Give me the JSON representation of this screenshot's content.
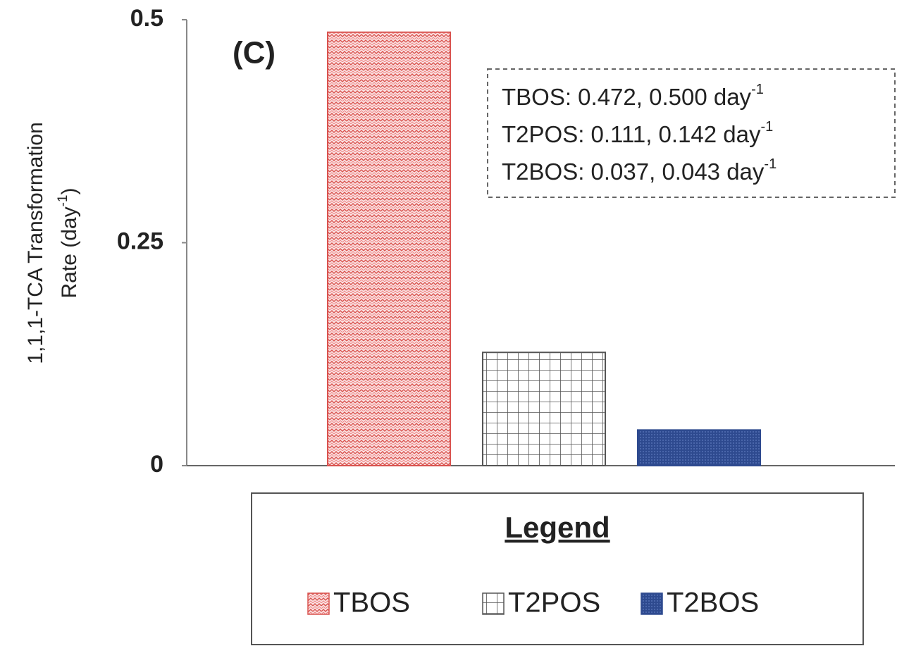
{
  "chart_data": {
    "type": "bar",
    "panel_label": "(C)",
    "y_label": {
      "line1": "1,1,1-TCA Transformation",
      "line2": {
        "before": "Rate (day",
        "sup": "-1",
        "after": ")"
      }
    },
    "categories": [
      "TBOS",
      "T2POS",
      "T2BOS"
    ],
    "values": [
      0.486,
      0.127,
      0.04
    ],
    "colors": [
      "#d9534f",
      "#555555",
      "#2e4a8f"
    ],
    "patterns": [
      "wave",
      "grid",
      "solid"
    ],
    "ylim": [
      0,
      0.5
    ],
    "yticks": [
      0,
      0.25,
      0.5
    ],
    "annotations": [
      {
        "text": "TBOS: 0.472, 0.500 day",
        "sup": "-1"
      },
      {
        "text": "T2POS: 0.111, 0.142 day",
        "sup": "-1"
      },
      {
        "text": "T2BOS: 0.037, 0.043 day",
        "sup": "-1"
      }
    ],
    "legend_title": "Legend"
  }
}
